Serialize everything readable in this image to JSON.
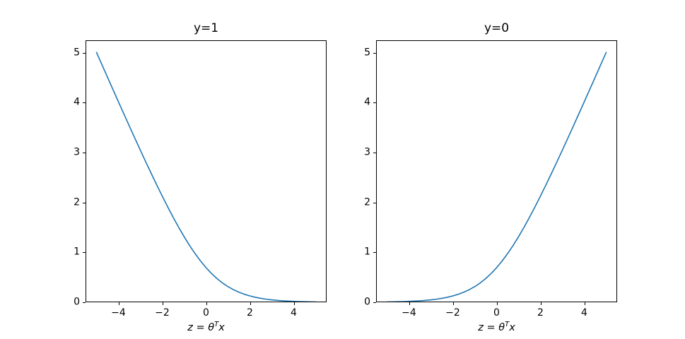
{
  "figure": {
    "background": "#ffffff",
    "line_color": "#1f77b4",
    "axis_color": "#000000",
    "text_color": "#000000"
  },
  "chart_data": [
    {
      "type": "line",
      "title": "y=1",
      "xlabel": "z = θ^T x",
      "xlabel_parts": {
        "pre": "z = θ",
        "sup": "T",
        "post": "x"
      },
      "xlim": [
        -5.5,
        5.5
      ],
      "ylim": [
        0,
        5.25
      ],
      "xticks": [
        -4,
        -2,
        0,
        2,
        4
      ],
      "xtick_labels": [
        "−4",
        "−2",
        "0",
        "2",
        "4"
      ],
      "yticks": [
        0,
        1,
        2,
        3,
        4,
        5
      ],
      "ytick_labels": [
        "0",
        "1",
        "2",
        "3",
        "4",
        "5"
      ],
      "grid": false,
      "legend": null,
      "line_color": "#1f77b4",
      "x": [
        -5,
        -4.75,
        -4.5,
        -4.25,
        -4,
        -3.75,
        -3.5,
        -3.25,
        -3,
        -2.75,
        -2.5,
        -2.25,
        -2,
        -1.75,
        -1.5,
        -1.25,
        -1,
        -0.75,
        -0.5,
        -0.25,
        0,
        0.25,
        0.5,
        0.75,
        1,
        1.25,
        1.5,
        1.75,
        2,
        2.25,
        2.5,
        2.75,
        3,
        3.25,
        3.5,
        3.75,
        4,
        4.25,
        4.5,
        4.75,
        5
      ],
      "y": [
        5.0067,
        4.7586,
        4.511,
        4.2642,
        4.0181,
        3.7732,
        3.5297,
        3.288,
        3.0486,
        2.812,
        2.5789,
        2.3502,
        2.1269,
        1.9102,
        1.7014,
        1.5019,
        1.3133,
        1.1369,
        0.9741,
        0.8259,
        0.6931,
        0.5759,
        0.4741,
        0.3869,
        0.3133,
        0.2519,
        0.2014,
        0.1602,
        0.1269,
        0.1002,
        0.0789,
        0.062,
        0.0486,
        0.038,
        0.0297,
        0.0232,
        0.0181,
        0.0142,
        0.011,
        0.0086,
        0.0067
      ]
    },
    {
      "type": "line",
      "title": "y=0",
      "xlabel": "z = θ^T x",
      "xlabel_parts": {
        "pre": "z = θ",
        "sup": "T",
        "post": "x"
      },
      "xlim": [
        -5.5,
        5.5
      ],
      "ylim": [
        0,
        5.25
      ],
      "xticks": [
        -4,
        -2,
        0,
        2,
        4
      ],
      "xtick_labels": [
        "−4",
        "−2",
        "0",
        "2",
        "4"
      ],
      "yticks": [
        0,
        1,
        2,
        3,
        4,
        5
      ],
      "ytick_labels": [
        "0",
        "1",
        "2",
        "3",
        "4",
        "5"
      ],
      "grid": false,
      "legend": null,
      "line_color": "#1f77b4",
      "x": [
        -5,
        -4.75,
        -4.5,
        -4.25,
        -4,
        -3.75,
        -3.5,
        -3.25,
        -3,
        -2.75,
        -2.5,
        -2.25,
        -2,
        -1.75,
        -1.5,
        -1.25,
        -1,
        -0.75,
        -0.5,
        -0.25,
        0,
        0.25,
        0.5,
        0.75,
        1,
        1.25,
        1.5,
        1.75,
        2,
        2.25,
        2.5,
        2.75,
        3,
        3.25,
        3.5,
        3.75,
        4,
        4.25,
        4.5,
        4.75,
        5
      ],
      "y": [
        0.0067,
        0.0086,
        0.011,
        0.0142,
        0.0181,
        0.0232,
        0.0297,
        0.038,
        0.0486,
        0.062,
        0.0789,
        0.1002,
        0.1269,
        0.1602,
        0.2014,
        0.2519,
        0.3133,
        0.3869,
        0.4741,
        0.5759,
        0.6931,
        0.8259,
        0.9741,
        1.1369,
        1.3133,
        1.5019,
        1.7014,
        1.9102,
        2.1269,
        2.3502,
        2.5789,
        2.812,
        3.0486,
        3.288,
        3.5297,
        3.7732,
        4.0181,
        4.2642,
        4.511,
        4.7586,
        5.0067
      ]
    }
  ]
}
